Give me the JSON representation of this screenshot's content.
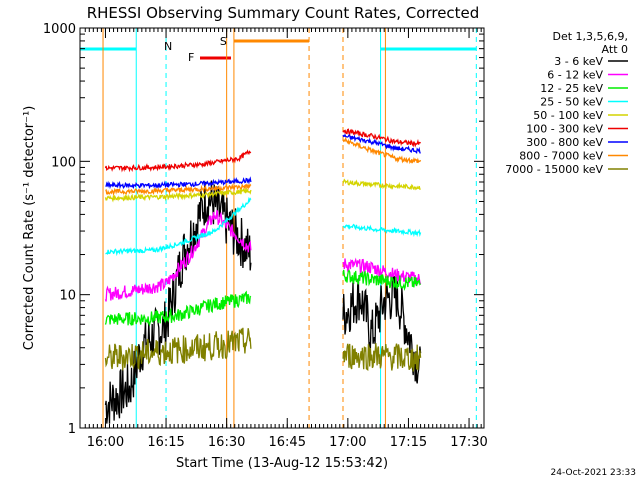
{
  "chart_data": {
    "type": "line",
    "title": "RHESSI Observing Summary Count Rates, Corrected",
    "xlabel": "Start Time (13-Aug-12 15:53:42)",
    "ylabel": "Corrected Count Rate (s⁻¹ detector⁻¹)",
    "xlim": [
      "15:53:42",
      "17:33:42"
    ],
    "ylim": [
      1,
      1000
    ],
    "yscale": "log",
    "x_ticks": [
      "16:00",
      "16:15",
      "16:30",
      "16:45",
      "17:00",
      "17:15",
      "17:30"
    ],
    "y_ticks": [
      "1",
      "10",
      "100",
      "1000"
    ],
    "legend_title": [
      "Det 1,3,5,6,9,",
      "Att 0"
    ],
    "legend_position": "right",
    "footer_date": "24-Oct-2021 23:33",
    "series": [
      {
        "name": "3 - 6 keV",
        "color": "#000000",
        "seg1": [
          [
            16.0,
            1.5
          ],
          [
            16.1,
            2
          ],
          [
            16.15,
            4
          ],
          [
            16.2,
            5
          ],
          [
            16.25,
            6
          ],
          [
            16.32,
            20
          ],
          [
            16.42,
            55
          ],
          [
            16.6,
            20
          ]
        ],
        "seg2": [
          [
            16.98,
            7
          ],
          [
            17.05,
            10
          ],
          [
            17.1,
            5
          ],
          [
            17.15,
            9
          ],
          [
            17.2,
            10
          ],
          [
            17.3,
            2.6
          ]
        ]
      },
      {
        "name": "6 - 12 keV",
        "color": "#ff00ff",
        "seg1": [
          [
            16.0,
            10
          ],
          [
            16.15,
            11
          ],
          [
            16.25,
            12
          ],
          [
            16.35,
            20
          ],
          [
            16.45,
            40
          ],
          [
            16.6,
            22
          ]
        ],
        "seg2": [
          [
            16.98,
            17
          ],
          [
            17.1,
            16
          ],
          [
            17.2,
            14
          ],
          [
            17.3,
            13
          ]
        ]
      },
      {
        "name": "12 - 25 keV",
        "color": "#00ee00",
        "seg1": [
          [
            16.0,
            6.5
          ],
          [
            16.2,
            6.7
          ],
          [
            16.3,
            7
          ],
          [
            16.45,
            8.5
          ],
          [
            16.6,
            9.5
          ]
        ],
        "seg2": [
          [
            16.98,
            14
          ],
          [
            17.1,
            13
          ],
          [
            17.2,
            12.5
          ],
          [
            17.3,
            12
          ]
        ]
      },
      {
        "name": "25 - 50 keV",
        "color": "#00ffff",
        "seg1": [
          [
            16.0,
            21
          ],
          [
            16.2,
            21.5
          ],
          [
            16.3,
            24
          ],
          [
            16.45,
            30
          ],
          [
            16.6,
            52
          ]
        ],
        "seg2": [
          [
            16.98,
            33
          ],
          [
            17.1,
            31
          ],
          [
            17.2,
            30
          ],
          [
            17.3,
            29
          ]
        ]
      },
      {
        "name": "50 - 100 keV",
        "color": "#d4d400",
        "seg1": [
          [
            16.0,
            53
          ],
          [
            16.2,
            54
          ],
          [
            16.4,
            56
          ],
          [
            16.6,
            60
          ]
        ],
        "seg2": [
          [
            16.98,
            70
          ],
          [
            17.1,
            67
          ],
          [
            17.2,
            65
          ],
          [
            17.3,
            64
          ]
        ]
      },
      {
        "name": "100 - 300 keV",
        "color": "#ee0000",
        "seg1": [
          [
            16.0,
            89
          ],
          [
            16.2,
            90
          ],
          [
            16.4,
            95
          ],
          [
            16.55,
            105
          ],
          [
            16.6,
            120
          ]
        ],
        "seg2": [
          [
            16.98,
            170
          ],
          [
            17.1,
            155
          ],
          [
            17.2,
            140
          ],
          [
            17.3,
            135
          ]
        ]
      },
      {
        "name": "300 - 800 keV",
        "color": "#0000ff",
        "seg1": [
          [
            16.0,
            66
          ],
          [
            16.2,
            66
          ],
          [
            16.4,
            68
          ],
          [
            16.6,
            72
          ]
        ],
        "seg2": [
          [
            16.98,
            155
          ],
          [
            17.1,
            140
          ],
          [
            17.2,
            125
          ],
          [
            17.3,
            120
          ]
        ]
      },
      {
        "name": "800 - 7000 keV",
        "color": "#ff8800",
        "seg1": [
          [
            16.0,
            59
          ],
          [
            16.2,
            60
          ],
          [
            16.4,
            62
          ],
          [
            16.6,
            65
          ]
        ],
        "seg2": [
          [
            16.98,
            145
          ],
          [
            17.1,
            120
          ],
          [
            17.2,
            105
          ],
          [
            17.3,
            100
          ]
        ]
      },
      {
        "name": "7000 - 15000 keV",
        "color": "#808000",
        "seg1": [
          [
            16.0,
            3.3
          ],
          [
            16.2,
            3.7
          ],
          [
            16.4,
            4
          ],
          [
            16.6,
            4.5
          ]
        ],
        "seg2": [
          [
            16.98,
            3.5
          ],
          [
            17.1,
            3.5
          ],
          [
            17.2,
            3.4
          ],
          [
            17.3,
            3.3
          ]
        ]
      }
    ],
    "annotations": [
      {
        "label": "N",
        "color": "#00ffff"
      },
      {
        "label": "F",
        "color": "#ee0000"
      },
      {
        "label": "S",
        "color": "#ff8800"
      }
    ]
  }
}
